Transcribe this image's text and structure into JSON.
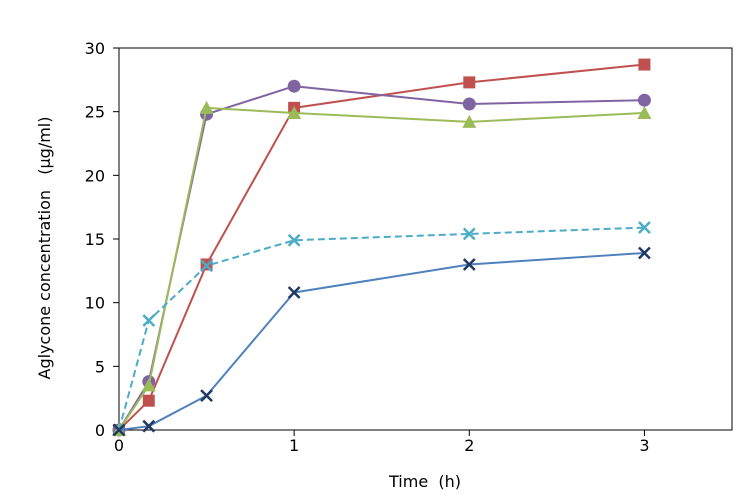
{
  "chart_data": {
    "type": "line",
    "title": "",
    "xlabel": "Time  (h)",
    "ylabel": "Aglycone concentration   (μg/ml)",
    "xlim": [
      0,
      3.5
    ],
    "ylim": [
      0,
      30
    ],
    "x_ticks": [
      "0",
      "1",
      "2",
      "3"
    ],
    "y_ticks": [
      "0",
      "5",
      "10",
      "15",
      "20",
      "25",
      "30"
    ],
    "grid": false,
    "legend": "none",
    "series": [
      {
        "color": "#c0504d",
        "marker": "square",
        "dash": false,
        "x": [
          0,
          0.17,
          0.5,
          1,
          2,
          3
        ],
        "y": [
          0,
          2.3,
          13.0,
          25.3,
          27.3,
          28.7
        ]
      },
      {
        "color": "#8064a2",
        "marker": "circle",
        "dash": false,
        "x": [
          0,
          0.17,
          0.5,
          1,
          2,
          3
        ],
        "y": [
          0,
          3.8,
          24.8,
          27.0,
          25.6,
          25.9
        ]
      },
      {
        "color": "#9bbb59",
        "marker": "triangle",
        "dash": false,
        "x": [
          0,
          0.17,
          0.5,
          1,
          2,
          3
        ],
        "y": [
          0,
          3.5,
          25.3,
          24.9,
          24.2,
          24.9
        ]
      },
      {
        "color": "#4bacc6",
        "marker": "x",
        "dash": true,
        "x": [
          0,
          0.17,
          0.5,
          1,
          2,
          3
        ],
        "y": [
          0,
          8.6,
          12.9,
          14.9,
          15.4,
          15.9
        ]
      },
      {
        "color": "#4f81bd",
        "markerColor": "#1f3864",
        "marker": "x",
        "dash": false,
        "x": [
          0,
          0.17,
          0.5,
          1,
          2,
          3
        ],
        "y": [
          0,
          0.3,
          2.7,
          10.8,
          13.0,
          13.9
        ]
      }
    ]
  }
}
